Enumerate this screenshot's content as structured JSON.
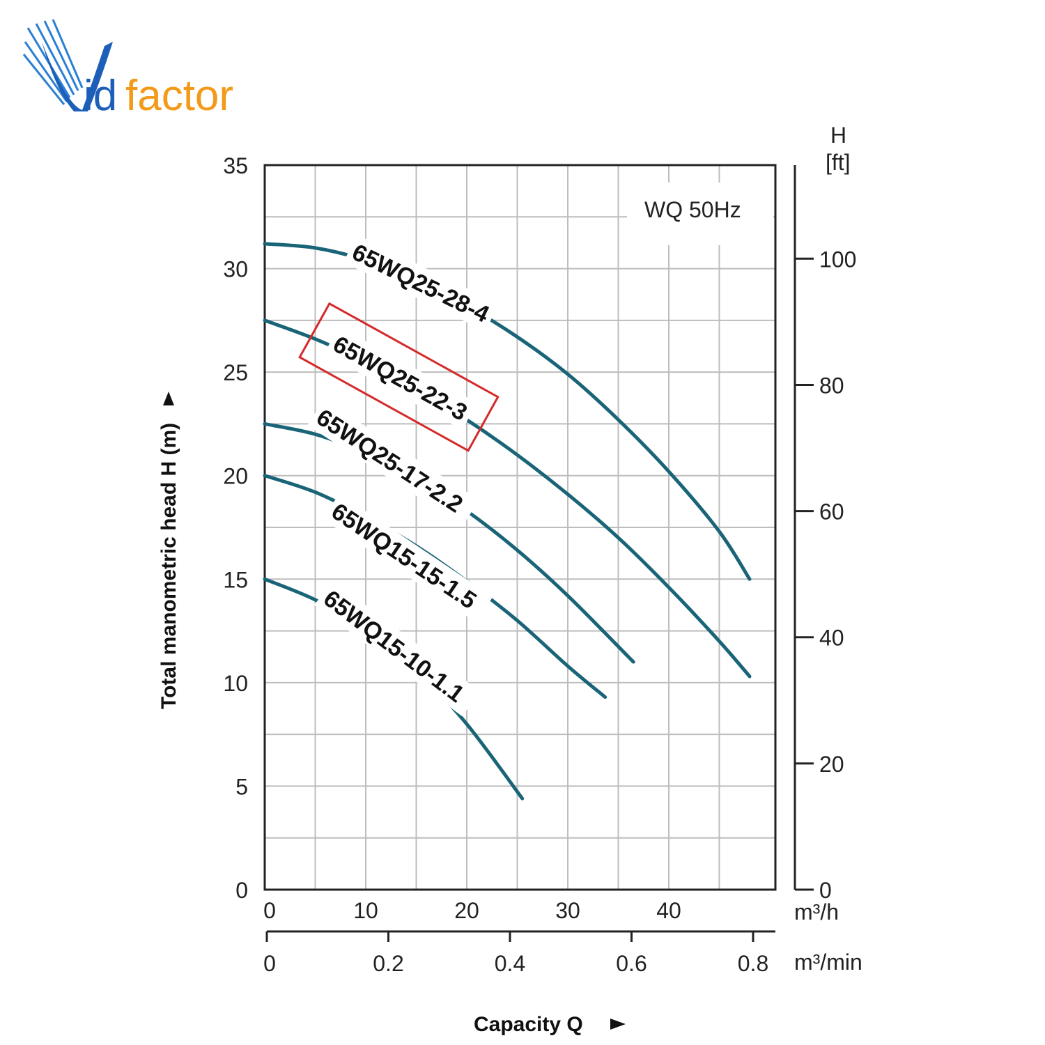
{
  "logo": {
    "text_v": "V",
    "text_id": "id",
    "text_factor": "factor",
    "colors": {
      "blue": "#1d5fb8",
      "orange": "#f39a1a"
    }
  },
  "chart_data": {
    "type": "line",
    "note": "WQ  50Hz",
    "xlabel": "Capacity Q",
    "ylabel": "Total manometric head H (m)",
    "ylabel_right_top": "H",
    "ylabel_right_unit": "[ft]",
    "xunit_primary": "m³/h",
    "xunit_secondary": "m³/min",
    "xlim": [
      0,
      48
    ],
    "ylim": [
      0,
      35
    ],
    "x_ticks": [
      "0",
      "10",
      "20",
      "30",
      "40"
    ],
    "x_ticks_min": [
      "0",
      "0.2",
      "0.4",
      "0.6",
      "0.8"
    ],
    "y_ticks": [
      "0",
      "5",
      "10",
      "15",
      "20",
      "25",
      "30",
      "35"
    ],
    "y_ticks_ft": [
      "0",
      "20",
      "40",
      "60",
      "80",
      "100"
    ],
    "curve_color": "#1a6478",
    "highlight_color": "#d42a2a",
    "highlighted_series": "65WQ25-22-3",
    "series": [
      {
        "name": "65WQ25-28-4",
        "x": [
          0,
          5,
          10,
          15,
          20,
          25,
          30,
          35,
          40,
          45,
          48
        ],
        "y": [
          31.2,
          31.0,
          30.4,
          29.4,
          28.2,
          26.7,
          24.9,
          22.7,
          20.2,
          17.3,
          15.0
        ]
      },
      {
        "name": "65WQ25-22-3",
        "x": [
          0,
          5,
          10,
          15,
          20,
          25,
          30,
          35,
          40,
          45,
          48
        ],
        "y": [
          27.5,
          26.6,
          25.5,
          24.2,
          22.7,
          21.0,
          19.1,
          17.0,
          14.6,
          12.0,
          10.3
        ]
      },
      {
        "name": "65WQ25-17-2.2",
        "x": [
          0,
          5,
          10,
          15,
          20,
          25,
          30,
          36.5
        ],
        "y": [
          22.5,
          22.0,
          21.1,
          19.9,
          18.3,
          16.4,
          14.2,
          11.0
        ]
      },
      {
        "name": "65WQ15-15-1.5",
        "x": [
          0,
          5,
          10,
          15,
          20,
          25,
          30,
          33.7
        ],
        "y": [
          20.0,
          19.2,
          18.0,
          16.6,
          14.9,
          13.0,
          10.8,
          9.3
        ]
      },
      {
        "name": "65WQ15-10-1.1",
        "x": [
          0,
          5,
          10,
          15,
          20,
          25.5
        ],
        "y": [
          15.0,
          14.0,
          12.6,
          10.6,
          8.0,
          4.4
        ]
      }
    ]
  }
}
